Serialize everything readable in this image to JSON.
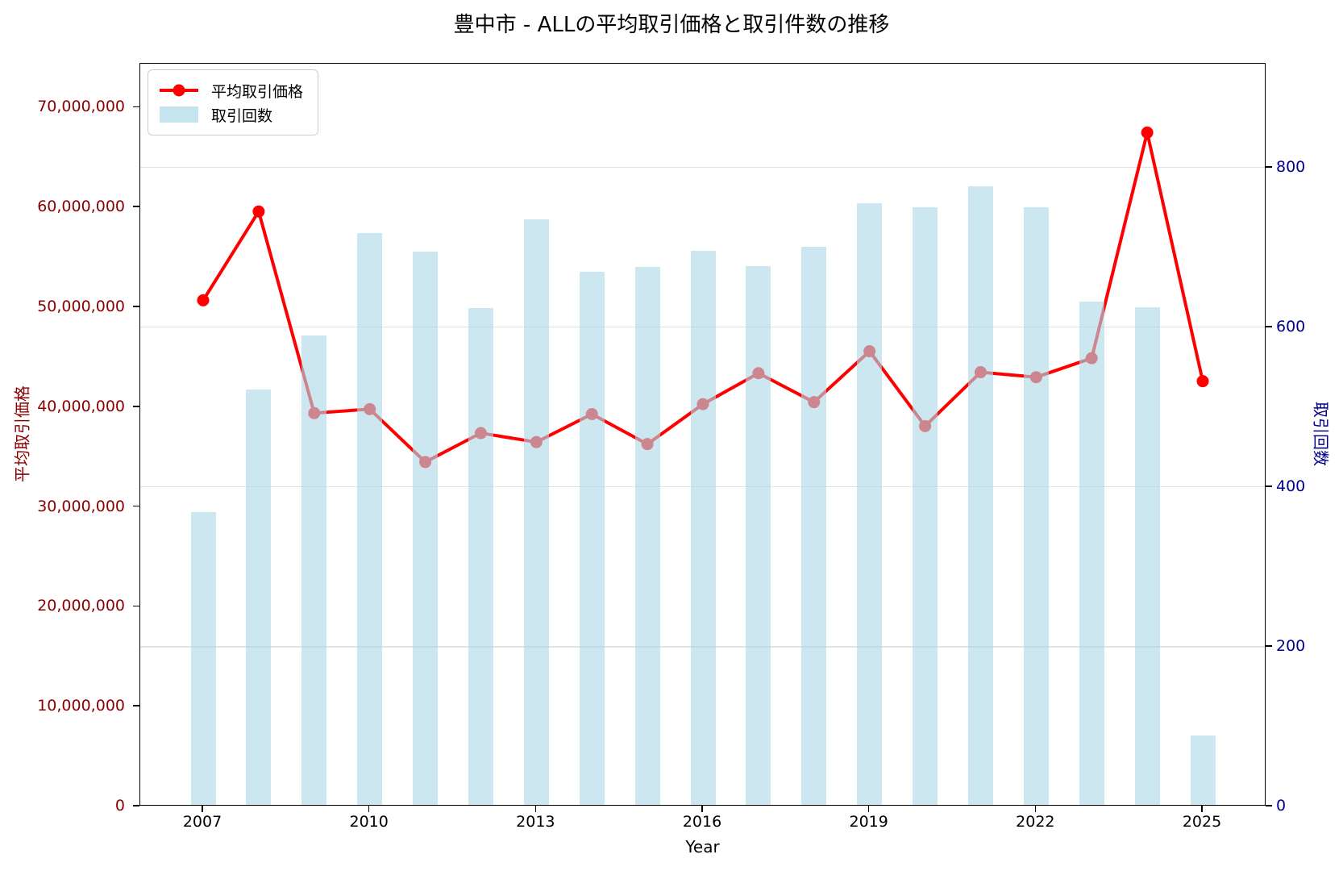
{
  "title": "豊中市 - ALLの平均取引価格と取引件数の推移",
  "legend": {
    "price_label": "平均取引価格",
    "count_label": "取引回数"
  },
  "axes": {
    "x_label": "Year",
    "y_left_label": "平均取引価格",
    "y_right_label": "取引回数",
    "y_left_ticks": [
      "0",
      "10,000,000",
      "20,000,000",
      "30,000,000",
      "40,000,000",
      "50,000,000",
      "60,000,000",
      "70,000,000"
    ],
    "y_right_ticks": [
      "0",
      "200",
      "400",
      "600",
      "800"
    ],
    "x_ticks": [
      "2007",
      "2010",
      "2013",
      "2016",
      "2019",
      "2022",
      "2025"
    ]
  },
  "colors": {
    "line": "#ff0000",
    "bar": "#add8e6",
    "bar_alpha": 0.62,
    "left_axis_text": "#8b0000",
    "right_axis_text": "#00008b",
    "grid": "#e2e2e2",
    "spine": "#000000"
  },
  "chart_data": {
    "type": "combo",
    "x": [
      2007,
      2008,
      2009,
      2010,
      2011,
      2012,
      2013,
      2014,
      2015,
      2016,
      2017,
      2018,
      2019,
      2020,
      2021,
      2022,
      2023,
      2024,
      2025
    ],
    "series": [
      {
        "name": "平均取引価格",
        "type": "line",
        "axis": "left",
        "color": "#ff0000",
        "marker": "circle",
        "values": [
          50700000,
          59600000,
          39400000,
          39800000,
          34500000,
          37400000,
          36500000,
          39300000,
          36300000,
          40300000,
          43400000,
          40500000,
          45600000,
          38100000,
          43500000,
          43000000,
          44900000,
          67500000,
          42600000
        ]
      },
      {
        "name": "取引回数",
        "type": "bar",
        "axis": "right",
        "color": "#add8e6",
        "values": [
          367,
          520,
          588,
          716,
          693,
          622,
          733,
          668,
          674,
          694,
          675,
          699,
          754,
          749,
          775,
          749,
          631,
          623,
          87
        ]
      }
    ],
    "y_left_range": [
      0,
      74400000
    ],
    "y_right_range": [
      0,
      930
    ],
    "grid": "horizontal gridlines at right-axis ticks 200/400/600/800",
    "legend_position": "upper left"
  }
}
